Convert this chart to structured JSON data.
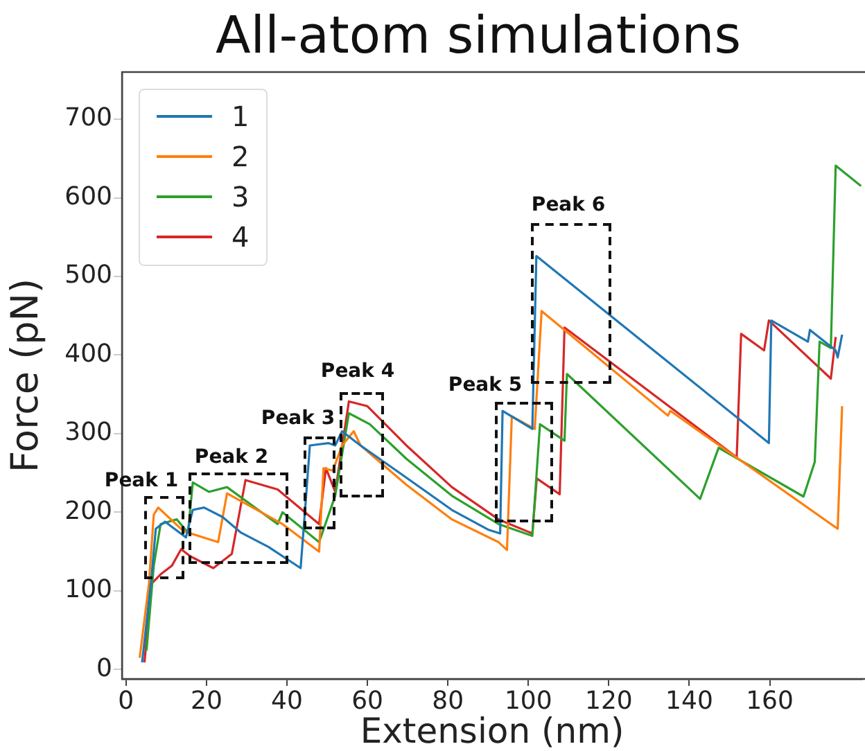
{
  "chart_data": {
    "type": "line",
    "title": "All-atom simulations",
    "xlabel": "Extension (nm)",
    "ylabel": "Force (pN)",
    "xlim": [
      -1,
      183
    ],
    "xticks": [
      0,
      20,
      40,
      60,
      80,
      100,
      120,
      140,
      160
    ],
    "ylim": [
      -12,
      760
    ],
    "yticks": [
      0,
      100,
      200,
      300,
      400,
      500,
      600,
      700
    ],
    "grid": false,
    "legend": "top left",
    "annotations": [
      "Peak 1",
      "Peak 2",
      "Peak 3",
      "Peak 4",
      "Peak 5",
      "Peak 6"
    ],
    "series": [
      {
        "name": "1",
        "color": "#1f77b4",
        "x": [
          4,
          6.3,
          7.4,
          9.7,
          14.9,
          16.6,
          19.4,
          24,
          28.6,
          35.4,
          43.4,
          44.6,
          45.7,
          50.3,
          52,
          53.7,
          58.3,
          69.7,
          81,
          90,
          93,
          93.6,
          101,
          102,
          159.8,
          160.4,
          169.5,
          170,
          176.4,
          176.9,
          178
        ],
        "values": [
          9,
          115,
          179,
          188,
          168,
          203,
          206,
          194,
          174,
          156,
          129,
          209,
          285,
          288,
          285,
          303,
          285,
          244,
          203,
          178,
          173,
          329,
          306,
          526,
          288,
          444,
          417,
          432,
          406,
          397,
          426
        ]
      },
      {
        "name": "2",
        "color": "#ff7f0e",
        "x": [
          3.4,
          5.7,
          6.9,
          8,
          14.3,
          22.9,
          25.1,
          38.9,
          48,
          49.1,
          51.4,
          53.7,
          56.6,
          58.3,
          69.7,
          81,
          92.6,
          94.7,
          95.9,
          101.6,
          103.3,
          134.7,
          135.3,
          176.9,
          178
        ],
        "values": [
          15,
          109,
          197,
          206,
          176,
          162,
          224,
          185,
          150,
          256,
          253,
          285,
          303,
          285,
          235,
          191,
          162,
          152,
          322,
          306,
          456,
          323,
          329,
          179,
          335
        ]
      },
      {
        "name": "3",
        "color": "#2ca02c",
        "x": [
          5.1,
          6.9,
          8.6,
          12.6,
          15.4,
          16.6,
          20.6,
          25.1,
          37.7,
          38.9,
          48,
          52,
          55.4,
          60.6,
          69.7,
          81,
          92.6,
          101,
          102.9,
          109,
          109.6,
          142.7,
          147.3,
          168.4,
          171.2,
          172.4,
          175.2,
          176.4,
          182.7
        ],
        "values": [
          24,
          132,
          185,
          191,
          174,
          238,
          226,
          232,
          185,
          200,
          162,
          221,
          326,
          312,
          268,
          221,
          185,
          170,
          312,
          291,
          376,
          217,
          282,
          220,
          264,
          417,
          409,
          641,
          615
        ]
      },
      {
        "name": "4",
        "color": "#d62728",
        "x": [
          4.6,
          6.3,
          8.6,
          11.4,
          13.7,
          16,
          21.7,
          26.3,
          29.7,
          37.7,
          48,
          49.7,
          52,
          55.4,
          60,
          69.7,
          81,
          92.6,
          101,
          102.1,
          107.8,
          109,
          151.8,
          152.9,
          158.6,
          159.8,
          175.2,
          176.4
        ],
        "values": [
          9,
          109,
          121,
          132,
          153,
          144,
          129,
          147,
          241,
          229,
          185,
          256,
          226,
          341,
          335,
          285,
          232,
          191,
          173,
          243,
          223,
          435,
          270,
          427,
          406,
          444,
          370,
          423
        ]
      }
    ]
  }
}
